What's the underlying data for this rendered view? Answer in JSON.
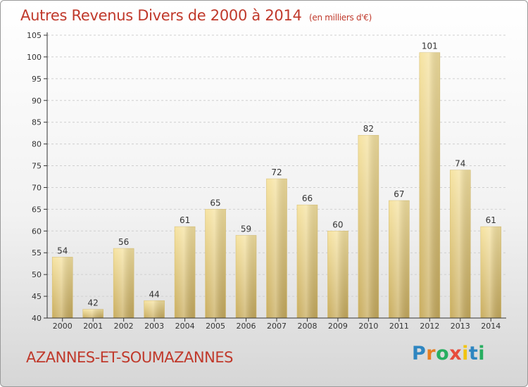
{
  "title": "Autres Revenus Divers de 2000 à 2014",
  "subtitle": "(en milliers d'€)",
  "commune": "AZANNES-ET-SOUMAZANNES",
  "logo": {
    "text": "Proxiti",
    "letters": [
      {
        "ch": "P",
        "color": "#2e86c1"
      },
      {
        "ch": "r",
        "color": "#e67e22"
      },
      {
        "ch": "o",
        "color": "#27ae60"
      },
      {
        "ch": "x",
        "color": "#e74c3c"
      },
      {
        "ch": "i",
        "color": "#f1c40f"
      },
      {
        "ch": "t",
        "color": "#2e86c1"
      },
      {
        "ch": "i",
        "color": "#27ae60"
      }
    ]
  },
  "colors": {
    "title": "#c0392b",
    "bar_light": "#f6e3a1",
    "bar_dark": "#c8ac5e",
    "axis": "#333333",
    "grid": "#cfcfcf"
  },
  "chart_data": {
    "type": "bar",
    "title": "Autres Revenus Divers de 2000 à 2014",
    "categories": [
      "2000",
      "2001",
      "2002",
      "2003",
      "2004",
      "2005",
      "2006",
      "2007",
      "2008",
      "2009",
      "2010",
      "2011",
      "2012",
      "2013",
      "2014"
    ],
    "values": [
      54,
      42,
      56,
      44,
      61,
      65,
      59,
      72,
      66,
      60,
      82,
      67,
      101,
      74,
      61
    ],
    "ylim": [
      40,
      105
    ],
    "yticks": [
      40,
      45,
      50,
      55,
      60,
      65,
      70,
      75,
      80,
      85,
      90,
      95,
      100,
      105
    ],
    "grid": true
  }
}
